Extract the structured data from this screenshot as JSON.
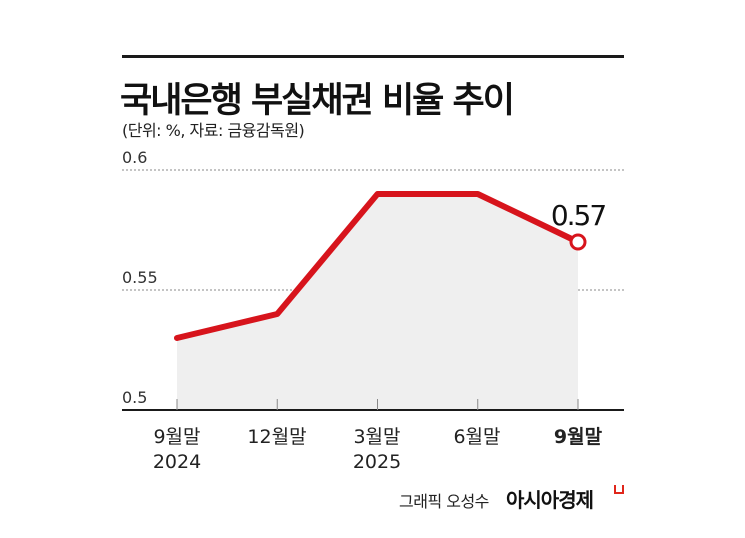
{
  "header": {
    "title": "국내은행 부실채권 비율 추이",
    "subtitle": "(단위: %, 자료: 금융감독원)"
  },
  "footer": {
    "credit": "그래픽 오성수",
    "brand": "아시아경제"
  },
  "colors": {
    "line": "#d7141c",
    "area": "#efefef",
    "grid": "#888888",
    "axis": "#1a1a1a"
  },
  "chart_data": {
    "type": "line",
    "title": "국내은행 부실채권 비율 추이",
    "subtitle": "(단위: %, 자료: 금융감독원)",
    "categories": [
      "9월말 2024",
      "12월말",
      "3월말 2025",
      "6월말",
      "9월말"
    ],
    "x_labels": [
      {
        "line1": "9월말",
        "line2": "2024"
      },
      {
        "line1": "12월말",
        "line2": ""
      },
      {
        "line1": "3월말",
        "line2": "2025"
      },
      {
        "line1": "6월말",
        "line2": ""
      },
      {
        "line1": "9월말",
        "line2": ""
      }
    ],
    "series": [
      {
        "name": "부실채권 비율",
        "values": [
          0.53,
          0.54,
          0.59,
          0.59,
          0.57
        ]
      }
    ],
    "annotations": [
      {
        "index": 4,
        "text": "0.57"
      }
    ],
    "y_ticks": [
      "0.6",
      "0.55",
      "0.5"
    ],
    "ylim": [
      0.5,
      0.6
    ],
    "xlabel": "",
    "ylabel": "%",
    "grid": true,
    "legend": "none"
  }
}
